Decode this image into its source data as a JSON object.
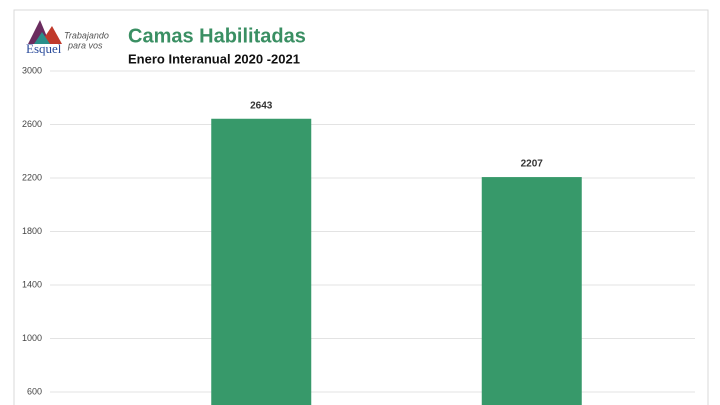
{
  "logo": {
    "name": "Esquel",
    "tagline": [
      "Trabajando",
      "para vos"
    ]
  },
  "chart_data": {
    "type": "bar",
    "title": "Camas Habilitadas",
    "subtitle": "Enero Interanual 2020 -2021",
    "categories": [
      null,
      null
    ],
    "values": [
      2643,
      2207
    ],
    "color": "#37996a",
    "ylim": [
      500,
      3000
    ],
    "yticks": [
      600,
      1000,
      1400,
      1800,
      2200,
      2600,
      3000
    ],
    "grid": true
  }
}
